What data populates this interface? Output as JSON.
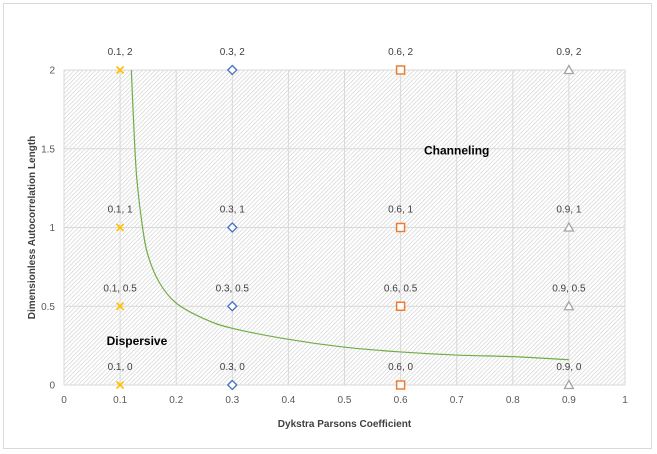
{
  "chart_data": {
    "type": "scatter",
    "xlabel": "Dykstra Parsons Coefficient",
    "ylabel": "Dimensionless Autocorrelation Length",
    "xlim": [
      0,
      1
    ],
    "ylim": [
      0,
      2
    ],
    "x_ticks": [
      "0",
      "0.1",
      "0.2",
      "0.3",
      "0.4",
      "0.5",
      "0.6",
      "0.7",
      "0.8",
      "0.9",
      "1"
    ],
    "y_ticks": [
      "0",
      "0.5",
      "1",
      "1.5",
      "2"
    ],
    "grid": true,
    "plot_area_fill": "diagonal-hatch",
    "series": [
      {
        "marker": "x",
        "color": "#FFC000",
        "points": [
          {
            "x": 0.1,
            "y": 2,
            "label": "0.1, 2"
          },
          {
            "x": 0.1,
            "y": 1,
            "label": "0.1, 1"
          },
          {
            "x": 0.1,
            "y": 0.5,
            "label": "0.1, 0.5"
          },
          {
            "x": 0.1,
            "y": 0,
            "label": "0.1, 0"
          }
        ]
      },
      {
        "marker": "diamond",
        "color": "#4472C4",
        "points": [
          {
            "x": 0.3,
            "y": 2,
            "label": "0.3, 2"
          },
          {
            "x": 0.3,
            "y": 1,
            "label": "0.3, 1"
          },
          {
            "x": 0.3,
            "y": 0.5,
            "label": "0.3, 0.5"
          },
          {
            "x": 0.3,
            "y": 0,
            "label": "0.3, 0"
          }
        ]
      },
      {
        "marker": "square",
        "color": "#ED7D31",
        "points": [
          {
            "x": 0.6,
            "y": 2,
            "label": "0.6, 2"
          },
          {
            "x": 0.6,
            "y": 1,
            "label": "0.6, 1"
          },
          {
            "x": 0.6,
            "y": 0.5,
            "label": "0.6, 0.5"
          },
          {
            "x": 0.6,
            "y": 0,
            "label": "0.6, 0"
          }
        ]
      },
      {
        "marker": "triangle",
        "color": "#A5A5A5",
        "points": [
          {
            "x": 0.9,
            "y": 2,
            "label": "0.9, 2"
          },
          {
            "x": 0.9,
            "y": 1,
            "label": "0.9, 1"
          },
          {
            "x": 0.9,
            "y": 0.5,
            "label": "0.9, 0.5"
          },
          {
            "x": 0.9,
            "y": 0,
            "label": "0.9, 0"
          }
        ]
      }
    ],
    "boundary_curve": {
      "color": "#70AD47",
      "points": [
        {
          "x": 0.12,
          "y": 2.0
        },
        {
          "x": 0.125,
          "y": 1.6
        },
        {
          "x": 0.13,
          "y": 1.3
        },
        {
          "x": 0.14,
          "y": 1.0
        },
        {
          "x": 0.15,
          "y": 0.82
        },
        {
          "x": 0.17,
          "y": 0.65
        },
        {
          "x": 0.2,
          "y": 0.52
        },
        {
          "x": 0.25,
          "y": 0.42
        },
        {
          "x": 0.3,
          "y": 0.36
        },
        {
          "x": 0.4,
          "y": 0.29
        },
        {
          "x": 0.5,
          "y": 0.24
        },
        {
          "x": 0.6,
          "y": 0.21
        },
        {
          "x": 0.7,
          "y": 0.19
        },
        {
          "x": 0.8,
          "y": 0.18
        },
        {
          "x": 0.9,
          "y": 0.16
        }
      ]
    },
    "annotations": [
      {
        "text": "Channeling",
        "x": 0.7,
        "y": 1.49
      },
      {
        "text": "Dispersive",
        "x": 0.13,
        "y": 0.28
      }
    ]
  }
}
